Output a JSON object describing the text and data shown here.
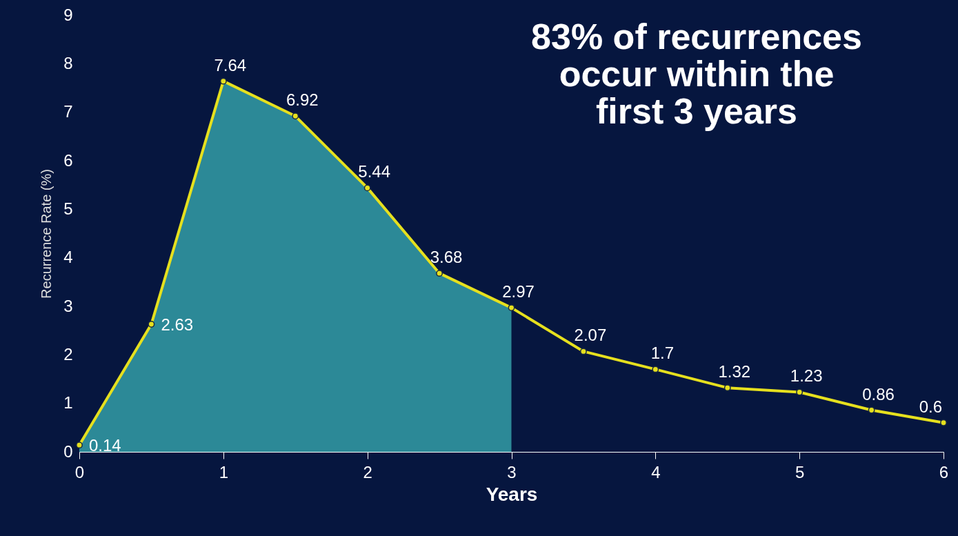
{
  "chart_data": {
    "type": "line",
    "xlabel": "Years",
    "ylabel": "Recurrence Rate (%)",
    "annotations": [
      "83% of recurrences occur within the first 3 years"
    ],
    "x": [
      0,
      0.5,
      1,
      1.5,
      2,
      2.5,
      3,
      3.5,
      4,
      4.5,
      5,
      5.5,
      6
    ],
    "series": [
      {
        "type": "area",
        "color": "#2e8f9c",
        "x": [
          0,
          0.5,
          1,
          1.5,
          2,
          2.5,
          3
        ],
        "values": [
          0.14,
          2.63,
          7.64,
          6.92,
          5.44,
          3.68,
          2.97
        ]
      },
      {
        "color": "#e6e01e",
        "values": [
          0.14,
          2.63,
          7.64,
          6.92,
          5.44,
          3.68,
          2.97,
          2.07,
          1.7,
          1.32,
          1.23,
          0.86,
          0.6
        ],
        "data_labels": true,
        "marker": "circle"
      }
    ],
    "line_style": "solid",
    "xlim": [
      0,
      6
    ],
    "xticks": [
      0,
      1,
      2,
      3,
      4,
      5,
      6
    ],
    "ylim": [
      0,
      9
    ],
    "yticks": [
      0,
      1,
      2,
      3,
      4,
      5,
      6,
      7,
      8,
      9
    ]
  }
}
